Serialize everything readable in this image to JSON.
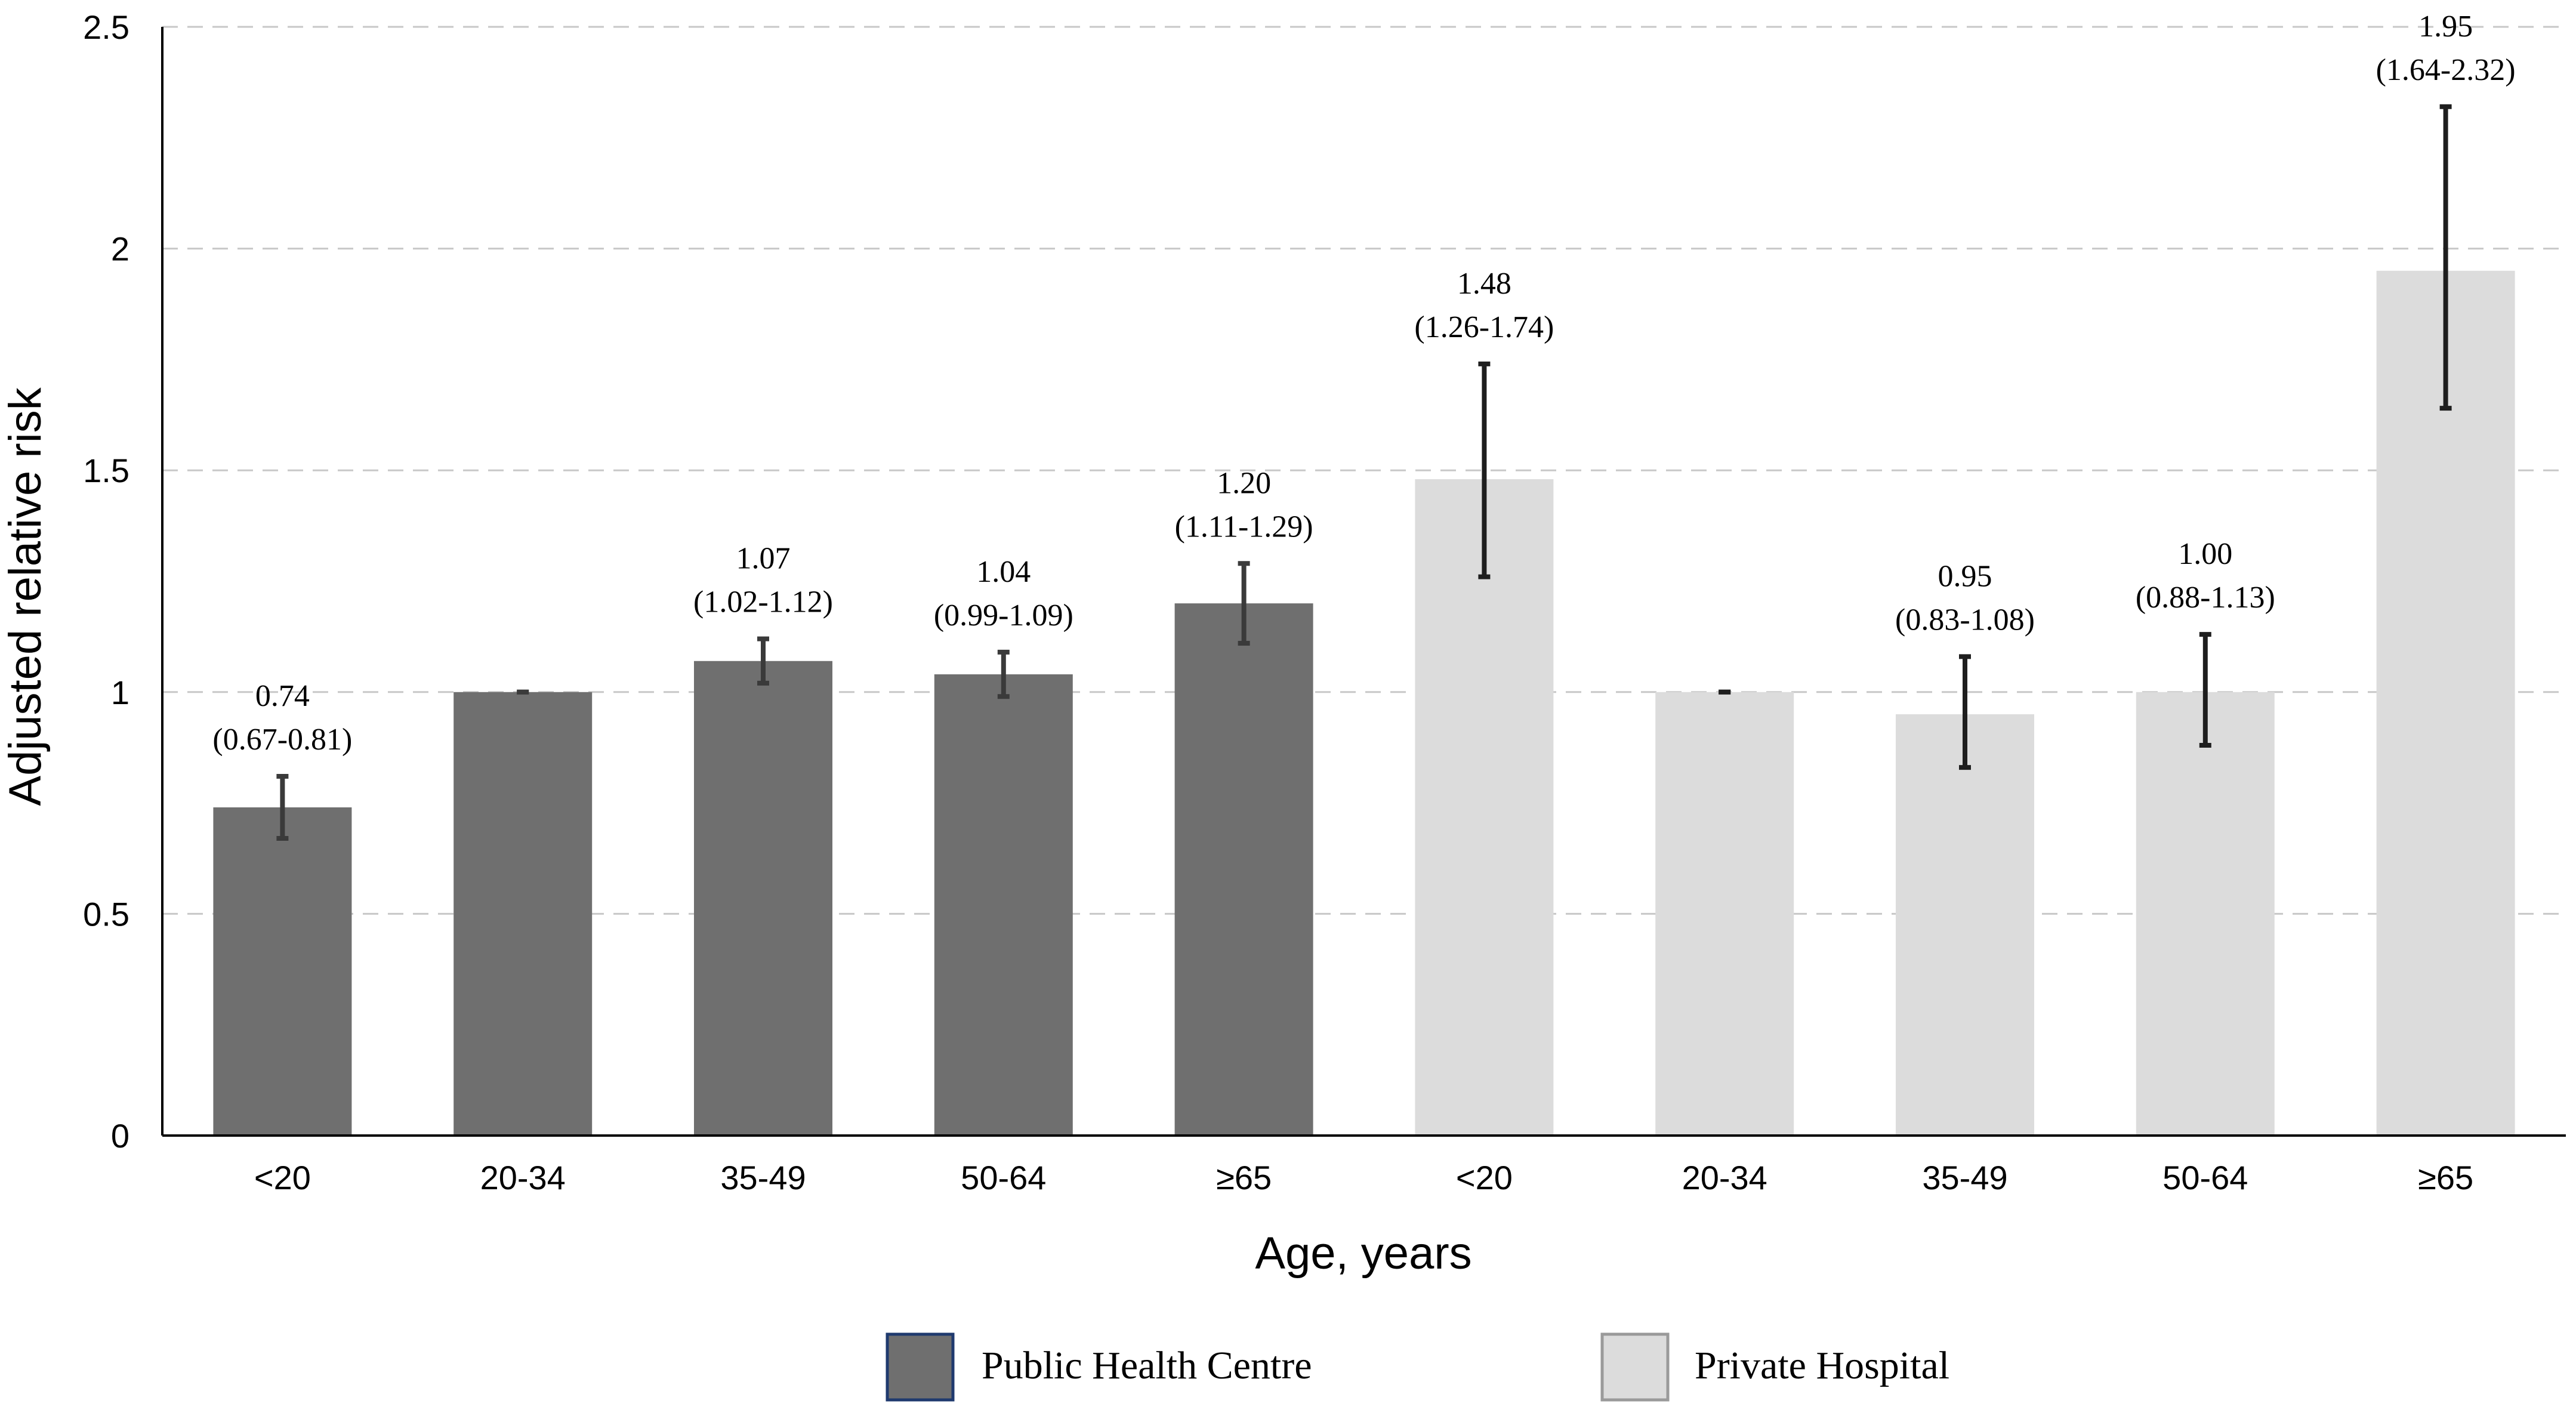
{
  "chart_data": {
    "type": "bar",
    "title": "",
    "xlabel": "Age, years",
    "ylabel": "Adjusted relative risk",
    "ylim": [
      0,
      2.5
    ],
    "yticks": [
      "0",
      "0.5",
      "1",
      "1.5",
      "2",
      "2.5"
    ],
    "ytick_values": [
      0,
      0.5,
      1,
      1.5,
      2,
      2.5
    ],
    "grid": true,
    "legend_position": "bottom",
    "categories": [
      "<20",
      "20-34",
      "35-49",
      "50-64",
      "≥65",
      "<20",
      "20-34",
      "35-49",
      "50-64",
      "≥65"
    ],
    "series": [
      {
        "name": "Public Health Centre",
        "color": "#6f6f6f",
        "error_color": "#3a3a3a",
        "bars": [
          {
            "category": "<20",
            "value": 0.74,
            "ci_low": 0.67,
            "ci_high": 0.81,
            "label_value": "0.74",
            "label_ci": "(0.67-0.81)"
          },
          {
            "category": "20-34",
            "value": 1.0,
            "ci_low": 1.0,
            "ci_high": 1.0,
            "label_value": "",
            "label_ci": ""
          },
          {
            "category": "35-49",
            "value": 1.07,
            "ci_low": 1.02,
            "ci_high": 1.12,
            "label_value": "1.07",
            "label_ci": "(1.02-1.12)"
          },
          {
            "category": "50-64",
            "value": 1.04,
            "ci_low": 0.99,
            "ci_high": 1.09,
            "label_value": "1.04",
            "label_ci": "(0.99-1.09)"
          },
          {
            "category": "≥65",
            "value": 1.2,
            "ci_low": 1.11,
            "ci_high": 1.29,
            "label_value": "1.20",
            "label_ci": "(1.11-1.29)"
          }
        ]
      },
      {
        "name": "Private Hospital",
        "color": "#dcdcdc",
        "error_color": "#1e1e1e",
        "bars": [
          {
            "category": "<20",
            "value": 1.48,
            "ci_low": 1.26,
            "ci_high": 1.74,
            "label_value": "1.48",
            "label_ci": "(1.26-1.74)"
          },
          {
            "category": "20-34",
            "value": 1.0,
            "ci_low": 1.0,
            "ci_high": 1.0,
            "label_value": "",
            "label_ci": ""
          },
          {
            "category": "35-49",
            "value": 0.95,
            "ci_low": 0.83,
            "ci_high": 1.08,
            "label_value": "0.95",
            "label_ci": "(0.83-1.08)"
          },
          {
            "category": "50-64",
            "value": 1.0,
            "ci_low": 0.88,
            "ci_high": 1.13,
            "label_value": "1.00",
            "label_ci": "(0.88-1.13)"
          },
          {
            "category": "≥65",
            "value": 1.95,
            "ci_low": 1.64,
            "ci_high": 2.32,
            "label_value": "1.95",
            "label_ci": "(1.64-2.32)"
          }
        ]
      }
    ],
    "legend": [
      {
        "label": "Public Health Centre",
        "color": "#6f6f6f",
        "border": "#1f3a6e"
      },
      {
        "label": "Private Hospital",
        "color": "#dcdcdc",
        "border": "#9a9a9a"
      }
    ]
  }
}
